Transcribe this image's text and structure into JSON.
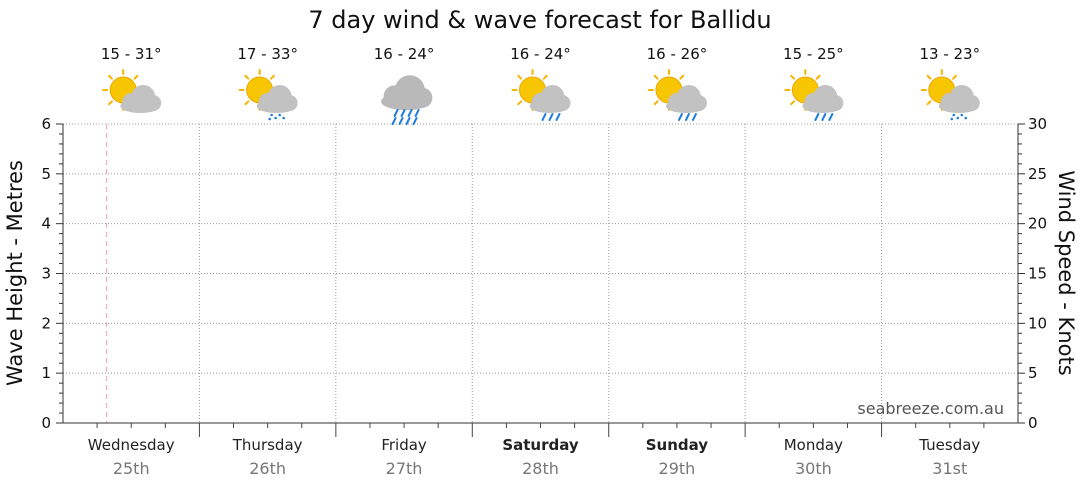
{
  "chart_data": {
    "type": "line",
    "title": "7 day wind & wave forecast for Ballidu",
    "ylabel": "Wave Height - Metres",
    "y2label": "Wind Speed - Knots",
    "ylim": [
      0,
      6
    ],
    "y2lim": [
      0,
      30
    ],
    "y_ticks": [
      "0",
      "1",
      "2",
      "3",
      "4",
      "5",
      "6"
    ],
    "y2_ticks": [
      "0",
      "5",
      "10",
      "15",
      "20",
      "25",
      "30"
    ],
    "grid": true,
    "watermark": "seabreeze.com.au",
    "days": [
      {
        "name": "Wednesday",
        "date": "25th",
        "temp": "15 - 31°",
        "icon": "sun-cloud-icon",
        "bold": false
      },
      {
        "name": "Thursday",
        "date": "26th",
        "temp": "17 - 33°",
        "icon": "sun-cloud-drizzle-icon",
        "bold": false
      },
      {
        "name": "Friday",
        "date": "27th",
        "temp": "16 - 24°",
        "icon": "cloud-rain-icon",
        "bold": false
      },
      {
        "name": "Saturday",
        "date": "28th",
        "temp": "16 - 24°",
        "icon": "sun-cloud-rain-icon",
        "bold": true
      },
      {
        "name": "Sunday",
        "date": "29th",
        "temp": "16 - 26°",
        "icon": "sun-cloud-rain-icon",
        "bold": true
      },
      {
        "name": "Monday",
        "date": "30th",
        "temp": "15 - 25°",
        "icon": "sun-cloud-rain-icon",
        "bold": false
      },
      {
        "name": "Tuesday",
        "date": "31st",
        "temp": "13 - 23°",
        "icon": "sun-cloud-drizzle-icon",
        "bold": false
      }
    ],
    "series": []
  }
}
